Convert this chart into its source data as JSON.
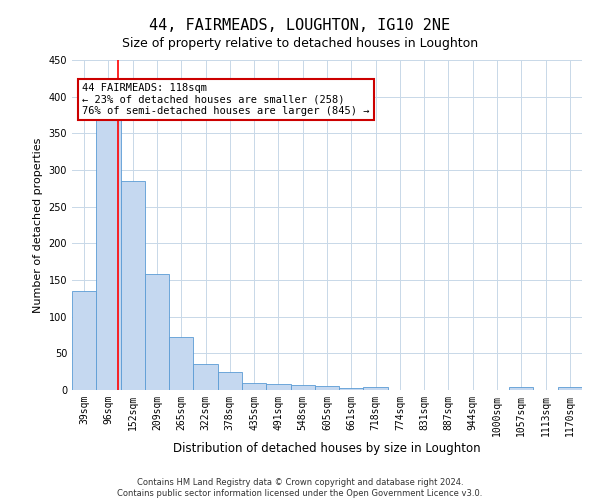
{
  "title": "44, FAIRMEADS, LOUGHTON, IG10 2NE",
  "subtitle": "Size of property relative to detached houses in Loughton",
  "xlabel": "Distribution of detached houses by size in Loughton",
  "ylabel": "Number of detached properties",
  "categories": [
    "39sqm",
    "96sqm",
    "152sqm",
    "209sqm",
    "265sqm",
    "322sqm",
    "378sqm",
    "435sqm",
    "491sqm",
    "548sqm",
    "605sqm",
    "661sqm",
    "718sqm",
    "774sqm",
    "831sqm",
    "887sqm",
    "944sqm",
    "1000sqm",
    "1057sqm",
    "1113sqm",
    "1170sqm"
  ],
  "values": [
    135,
    375,
    285,
    158,
    72,
    36,
    25,
    10,
    8,
    7,
    5,
    3,
    4,
    0,
    0,
    0,
    0,
    0,
    4,
    0,
    4
  ],
  "bar_color": "#c5d8f0",
  "bar_edge_color": "#5b9bd5",
  "property_sqm": 118,
  "bin_start_sqm": [
    39,
    96,
    152,
    209,
    265,
    322,
    378,
    435,
    491,
    548,
    605,
    661,
    718,
    774,
    831,
    887,
    944,
    1000,
    1057,
    1113,
    1170
  ],
  "annotation_line1": "44 FAIRMEADS: 118sqm",
  "annotation_line2": "← 23% of detached houses are smaller (258)",
  "annotation_line3": "76% of semi-detached houses are larger (845) →",
  "annotation_box_color": "#ffffff",
  "annotation_box_edge": "#cc0000",
  "ylim": [
    0,
    450
  ],
  "yticks": [
    0,
    50,
    100,
    150,
    200,
    250,
    300,
    350,
    400,
    450
  ],
  "footer1": "Contains HM Land Registry data © Crown copyright and database right 2024.",
  "footer2": "Contains public sector information licensed under the Open Government Licence v3.0.",
  "background_color": "#ffffff",
  "grid_color": "#c8d8e8",
  "title_fontsize": 11,
  "subtitle_fontsize": 9,
  "tick_fontsize": 7,
  "ylabel_fontsize": 8,
  "xlabel_fontsize": 8.5,
  "annotation_fontsize": 7.5,
  "footer_fontsize": 6
}
